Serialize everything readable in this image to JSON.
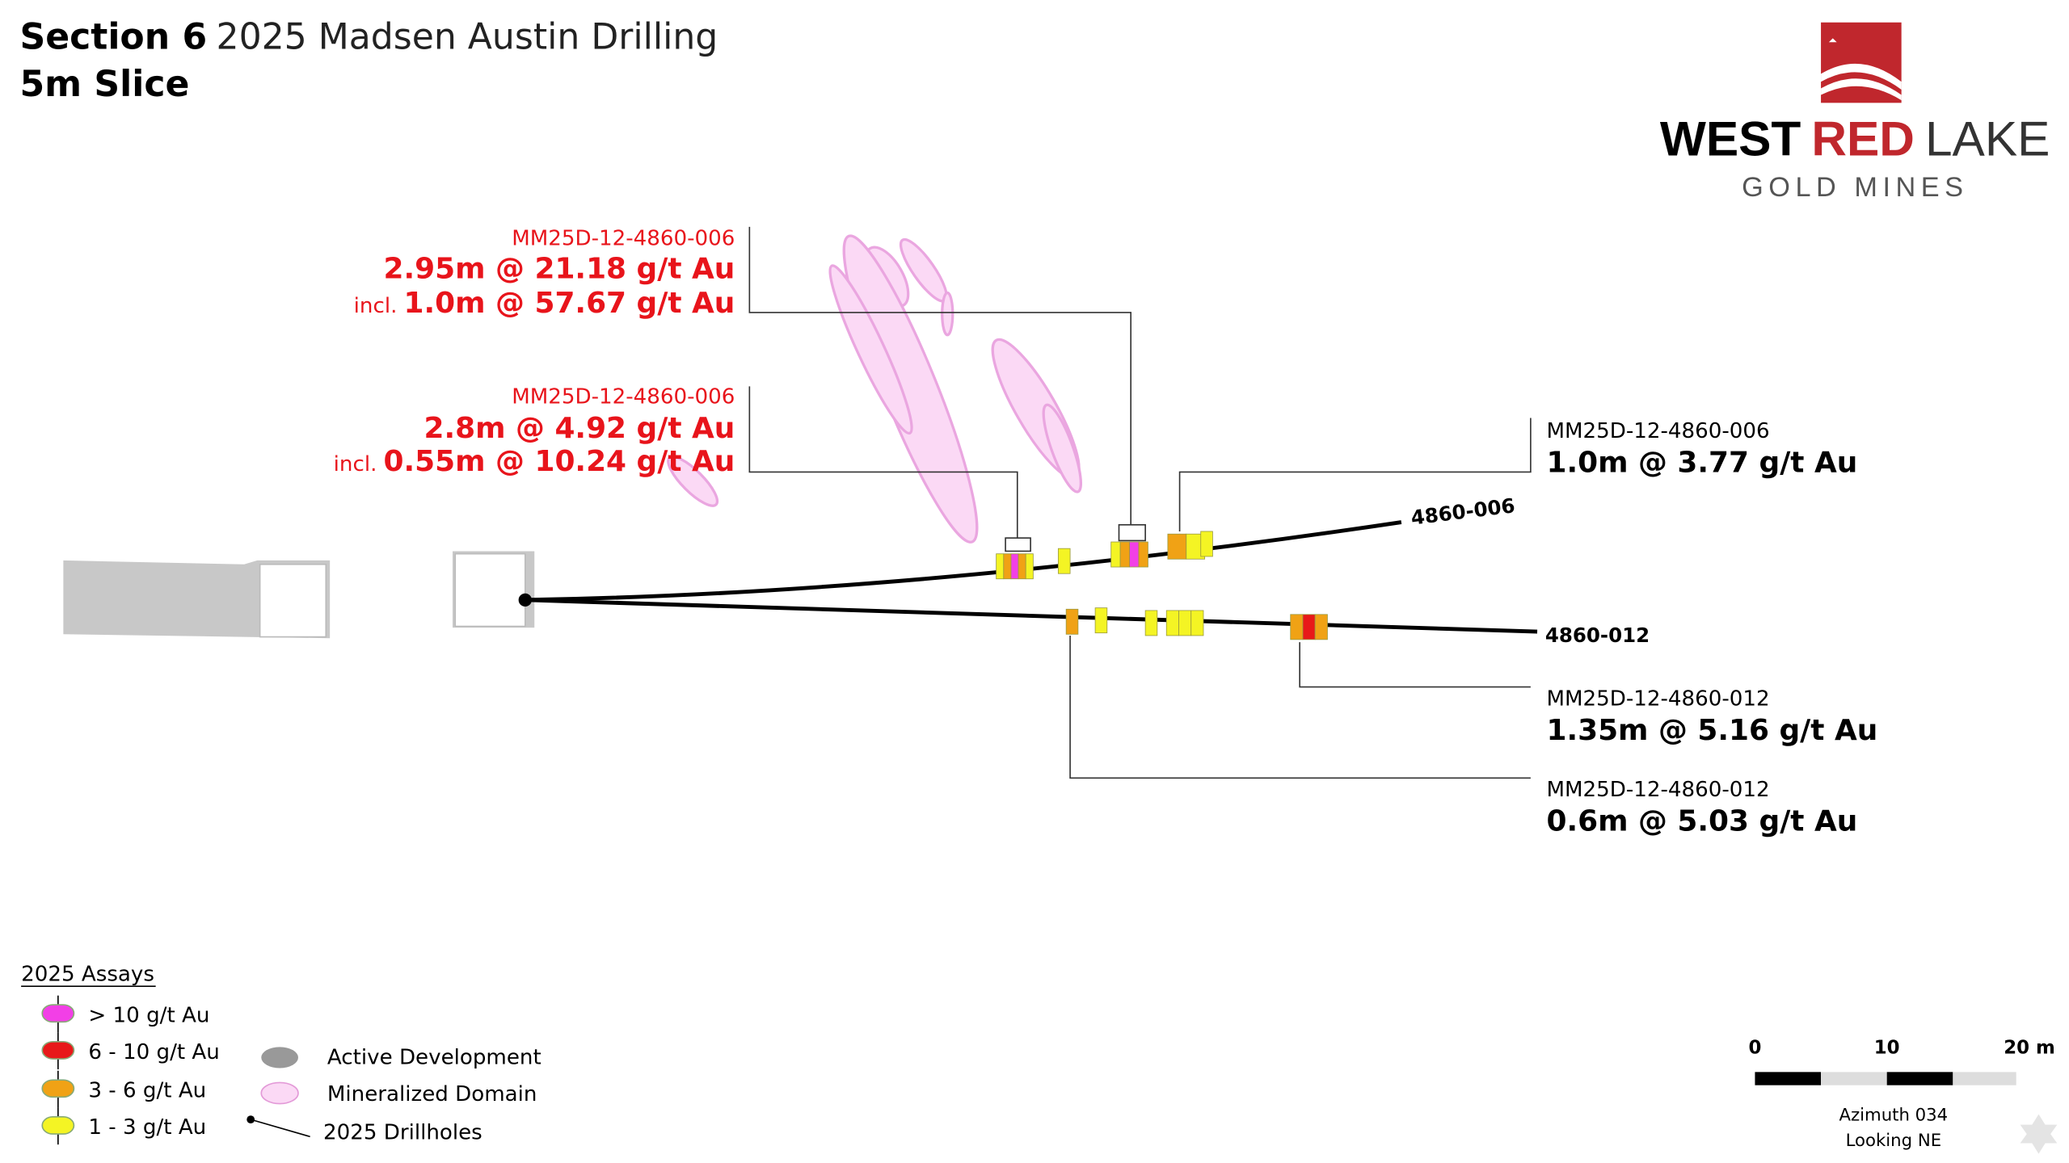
{
  "title": {
    "bold": "Section 6",
    "rest": "2025 Madsen Austin Drilling",
    "subtitle": "5m Slice"
  },
  "logo": {
    "word1": "WEST",
    "word2": "RED",
    "word3": "LAKE",
    "tagline": "GOLD MINES"
  },
  "callouts": [
    {
      "hole": "MM25D-12-4860-006",
      "interval": "2.95m @ 21.18 g/t Au",
      "incl": "incl.",
      "incl_interval": "1.0m @ 57.67 g/t Au"
    },
    {
      "hole": "MM25D-12-4860-006",
      "interval": "2.8m @ 4.92 g/t Au",
      "incl": "incl.",
      "incl_interval": "0.55m @ 10.24 g/t Au"
    },
    {
      "hole": "MM25D-12-4860-006",
      "interval": "1.0m @ 3.77 g/t Au"
    },
    {
      "hole": "MM25D-12-4860-012",
      "interval": "1.35m @ 5.16 g/t Au"
    },
    {
      "hole": "MM25D-12-4860-012",
      "interval": "0.6m @ 5.03 g/t Au"
    }
  ],
  "drillholes": [
    "4860-006",
    "4860-012"
  ],
  "legend": {
    "title": "2025 Assays",
    "assays": [
      {
        "label": "> 10 g/t Au",
        "color": "#f23fe6"
      },
      {
        "label": "6 - 10 g/t Au",
        "color": "#e81919"
      },
      {
        "label": "3 - 6 g/t Au",
        "color": "#f0a215"
      },
      {
        "label": "1 - 3 g/t Au",
        "color": "#f4f424"
      }
    ],
    "items": [
      "Active Development",
      "Mineralized Domain",
      "2025 Drillholes"
    ]
  },
  "scale": {
    "ticks": [
      "0",
      "10",
      "20 m"
    ],
    "azimuth": "Azimuth 034",
    "looking": "Looking NE"
  }
}
